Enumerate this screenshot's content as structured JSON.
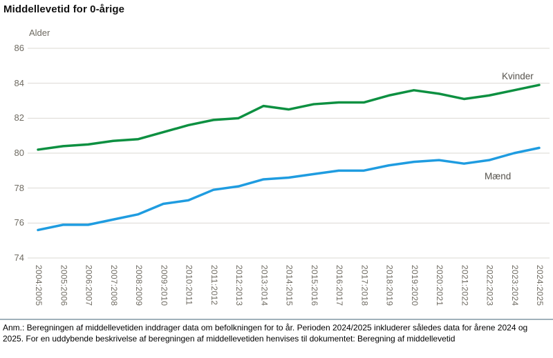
{
  "title": "Middellevetid for 0-årige",
  "note": "Anm.: Beregningen af middellevetiden inddrager data om befolkningen for to år. Perioden 2024/2025 inkluderer således data for årene 2024 og 2025. For en uddybende beskrivelse af beregningen af middellevetiden henvises til dokumentet: Beregning af middellevetid",
  "colors": {
    "kvinder": "#0d9041",
    "maend": "#1f9ce0",
    "grid": "#dbd8d2",
    "tick_text": "#6e6a61",
    "divider": "#9fb1ba"
  },
  "chart_data": {
    "type": "line",
    "title": "Middellevetid for 0-årige",
    "xlabel": "",
    "ylabel": "Alder",
    "ylim": [
      74,
      86
    ],
    "yticks": [
      86,
      84,
      82,
      80,
      78,
      76,
      74
    ],
    "grid": "horizontal gridlines on",
    "legend_position": "labels inline at right end of lines",
    "categories": [
      "2004:2005",
      "2005:2006",
      "2006:2007",
      "2007:2008",
      "2008:2009",
      "2009:2010",
      "2010:2011",
      "2011:2012",
      "2012:2013",
      "2013:2014",
      "2014:2015",
      "2015:2016",
      "2016:2017",
      "2017:2018",
      "2018:2019",
      "2019:2020",
      "2020:2021",
      "2021:2022",
      "2022:2023",
      "2023:2024",
      "2024:2025"
    ],
    "series": [
      {
        "name": "Kvinder",
        "color": "#0d9041",
        "values": [
          80.2,
          80.4,
          80.5,
          80.7,
          80.8,
          81.2,
          81.6,
          81.9,
          82.0,
          82.7,
          82.5,
          82.8,
          82.9,
          82.9,
          83.3,
          83.6,
          83.4,
          83.1,
          83.3,
          83.6,
          83.9
        ]
      },
      {
        "name": "Mænd",
        "color": "#1f9ce0",
        "values": [
          75.6,
          75.9,
          75.9,
          76.2,
          76.5,
          77.1,
          77.3,
          77.9,
          78.1,
          78.5,
          78.6,
          78.8,
          79.0,
          79.0,
          79.3,
          79.5,
          79.6,
          79.4,
          79.6,
          80.0,
          80.3
        ]
      }
    ],
    "series_labels": {
      "kvinder": "Kvinder",
      "maend": "Mænd"
    }
  }
}
